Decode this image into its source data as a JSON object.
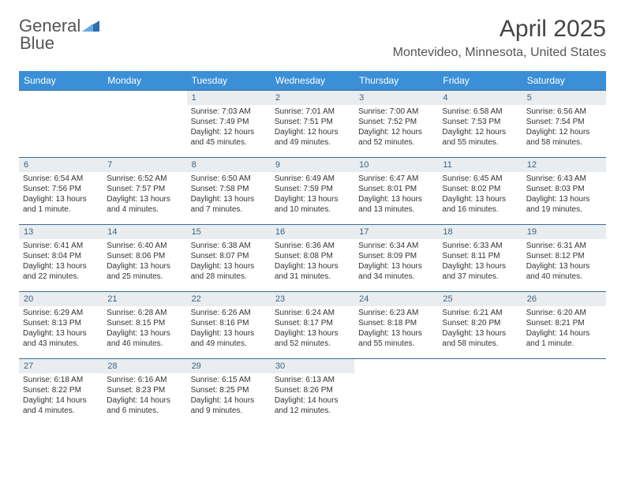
{
  "branding": {
    "text_a": "General",
    "text_b": "Blue",
    "icon_color": "#2b6fb0"
  },
  "heading": {
    "month_title": "April 2025",
    "location": "Montevideo, Minnesota, United States"
  },
  "styling": {
    "weekday_bg": "#3b8fd6",
    "weekday_fg": "#ffffff",
    "daynum_bg": "#e9edef",
    "daynum_fg": "#3b6387",
    "grid_border_color": "#3b6ea0",
    "body_text_color": "#333333",
    "page_bg": "#ffffff",
    "title_fontsize": 30,
    "location_fontsize": 16,
    "weekday_fontsize": 12,
    "daynum_fontsize": 11,
    "info_fontsize": 10
  },
  "weekdays": [
    "Sunday",
    "Monday",
    "Tuesday",
    "Wednesday",
    "Thursday",
    "Friday",
    "Saturday"
  ],
  "weeks": [
    [
      null,
      null,
      {
        "n": "1",
        "sr": "Sunrise: 7:03 AM",
        "ss": "Sunset: 7:49 PM",
        "dl": "Daylight: 12 hours and 45 minutes."
      },
      {
        "n": "2",
        "sr": "Sunrise: 7:01 AM",
        "ss": "Sunset: 7:51 PM",
        "dl": "Daylight: 12 hours and 49 minutes."
      },
      {
        "n": "3",
        "sr": "Sunrise: 7:00 AM",
        "ss": "Sunset: 7:52 PM",
        "dl": "Daylight: 12 hours and 52 minutes."
      },
      {
        "n": "4",
        "sr": "Sunrise: 6:58 AM",
        "ss": "Sunset: 7:53 PM",
        "dl": "Daylight: 12 hours and 55 minutes."
      },
      {
        "n": "5",
        "sr": "Sunrise: 6:56 AM",
        "ss": "Sunset: 7:54 PM",
        "dl": "Daylight: 12 hours and 58 minutes."
      }
    ],
    [
      {
        "n": "6",
        "sr": "Sunrise: 6:54 AM",
        "ss": "Sunset: 7:56 PM",
        "dl": "Daylight: 13 hours and 1 minute."
      },
      {
        "n": "7",
        "sr": "Sunrise: 6:52 AM",
        "ss": "Sunset: 7:57 PM",
        "dl": "Daylight: 13 hours and 4 minutes."
      },
      {
        "n": "8",
        "sr": "Sunrise: 6:50 AM",
        "ss": "Sunset: 7:58 PM",
        "dl": "Daylight: 13 hours and 7 minutes."
      },
      {
        "n": "9",
        "sr": "Sunrise: 6:49 AM",
        "ss": "Sunset: 7:59 PM",
        "dl": "Daylight: 13 hours and 10 minutes."
      },
      {
        "n": "10",
        "sr": "Sunrise: 6:47 AM",
        "ss": "Sunset: 8:01 PM",
        "dl": "Daylight: 13 hours and 13 minutes."
      },
      {
        "n": "11",
        "sr": "Sunrise: 6:45 AM",
        "ss": "Sunset: 8:02 PM",
        "dl": "Daylight: 13 hours and 16 minutes."
      },
      {
        "n": "12",
        "sr": "Sunrise: 6:43 AM",
        "ss": "Sunset: 8:03 PM",
        "dl": "Daylight: 13 hours and 19 minutes."
      }
    ],
    [
      {
        "n": "13",
        "sr": "Sunrise: 6:41 AM",
        "ss": "Sunset: 8:04 PM",
        "dl": "Daylight: 13 hours and 22 minutes."
      },
      {
        "n": "14",
        "sr": "Sunrise: 6:40 AM",
        "ss": "Sunset: 8:06 PM",
        "dl": "Daylight: 13 hours and 25 minutes."
      },
      {
        "n": "15",
        "sr": "Sunrise: 6:38 AM",
        "ss": "Sunset: 8:07 PM",
        "dl": "Daylight: 13 hours and 28 minutes."
      },
      {
        "n": "16",
        "sr": "Sunrise: 6:36 AM",
        "ss": "Sunset: 8:08 PM",
        "dl": "Daylight: 13 hours and 31 minutes."
      },
      {
        "n": "17",
        "sr": "Sunrise: 6:34 AM",
        "ss": "Sunset: 8:09 PM",
        "dl": "Daylight: 13 hours and 34 minutes."
      },
      {
        "n": "18",
        "sr": "Sunrise: 6:33 AM",
        "ss": "Sunset: 8:11 PM",
        "dl": "Daylight: 13 hours and 37 minutes."
      },
      {
        "n": "19",
        "sr": "Sunrise: 6:31 AM",
        "ss": "Sunset: 8:12 PM",
        "dl": "Daylight: 13 hours and 40 minutes."
      }
    ],
    [
      {
        "n": "20",
        "sr": "Sunrise: 6:29 AM",
        "ss": "Sunset: 8:13 PM",
        "dl": "Daylight: 13 hours and 43 minutes."
      },
      {
        "n": "21",
        "sr": "Sunrise: 6:28 AM",
        "ss": "Sunset: 8:15 PM",
        "dl": "Daylight: 13 hours and 46 minutes."
      },
      {
        "n": "22",
        "sr": "Sunrise: 6:26 AM",
        "ss": "Sunset: 8:16 PM",
        "dl": "Daylight: 13 hours and 49 minutes."
      },
      {
        "n": "23",
        "sr": "Sunrise: 6:24 AM",
        "ss": "Sunset: 8:17 PM",
        "dl": "Daylight: 13 hours and 52 minutes."
      },
      {
        "n": "24",
        "sr": "Sunrise: 6:23 AM",
        "ss": "Sunset: 8:18 PM",
        "dl": "Daylight: 13 hours and 55 minutes."
      },
      {
        "n": "25",
        "sr": "Sunrise: 6:21 AM",
        "ss": "Sunset: 8:20 PM",
        "dl": "Daylight: 13 hours and 58 minutes."
      },
      {
        "n": "26",
        "sr": "Sunrise: 6:20 AM",
        "ss": "Sunset: 8:21 PM",
        "dl": "Daylight: 14 hours and 1 minute."
      }
    ],
    [
      {
        "n": "27",
        "sr": "Sunrise: 6:18 AM",
        "ss": "Sunset: 8:22 PM",
        "dl": "Daylight: 14 hours and 4 minutes."
      },
      {
        "n": "28",
        "sr": "Sunrise: 6:16 AM",
        "ss": "Sunset: 8:23 PM",
        "dl": "Daylight: 14 hours and 6 minutes."
      },
      {
        "n": "29",
        "sr": "Sunrise: 6:15 AM",
        "ss": "Sunset: 8:25 PM",
        "dl": "Daylight: 14 hours and 9 minutes."
      },
      {
        "n": "30",
        "sr": "Sunrise: 6:13 AM",
        "ss": "Sunset: 8:26 PM",
        "dl": "Daylight: 14 hours and 12 minutes."
      },
      null,
      null,
      null
    ]
  ]
}
